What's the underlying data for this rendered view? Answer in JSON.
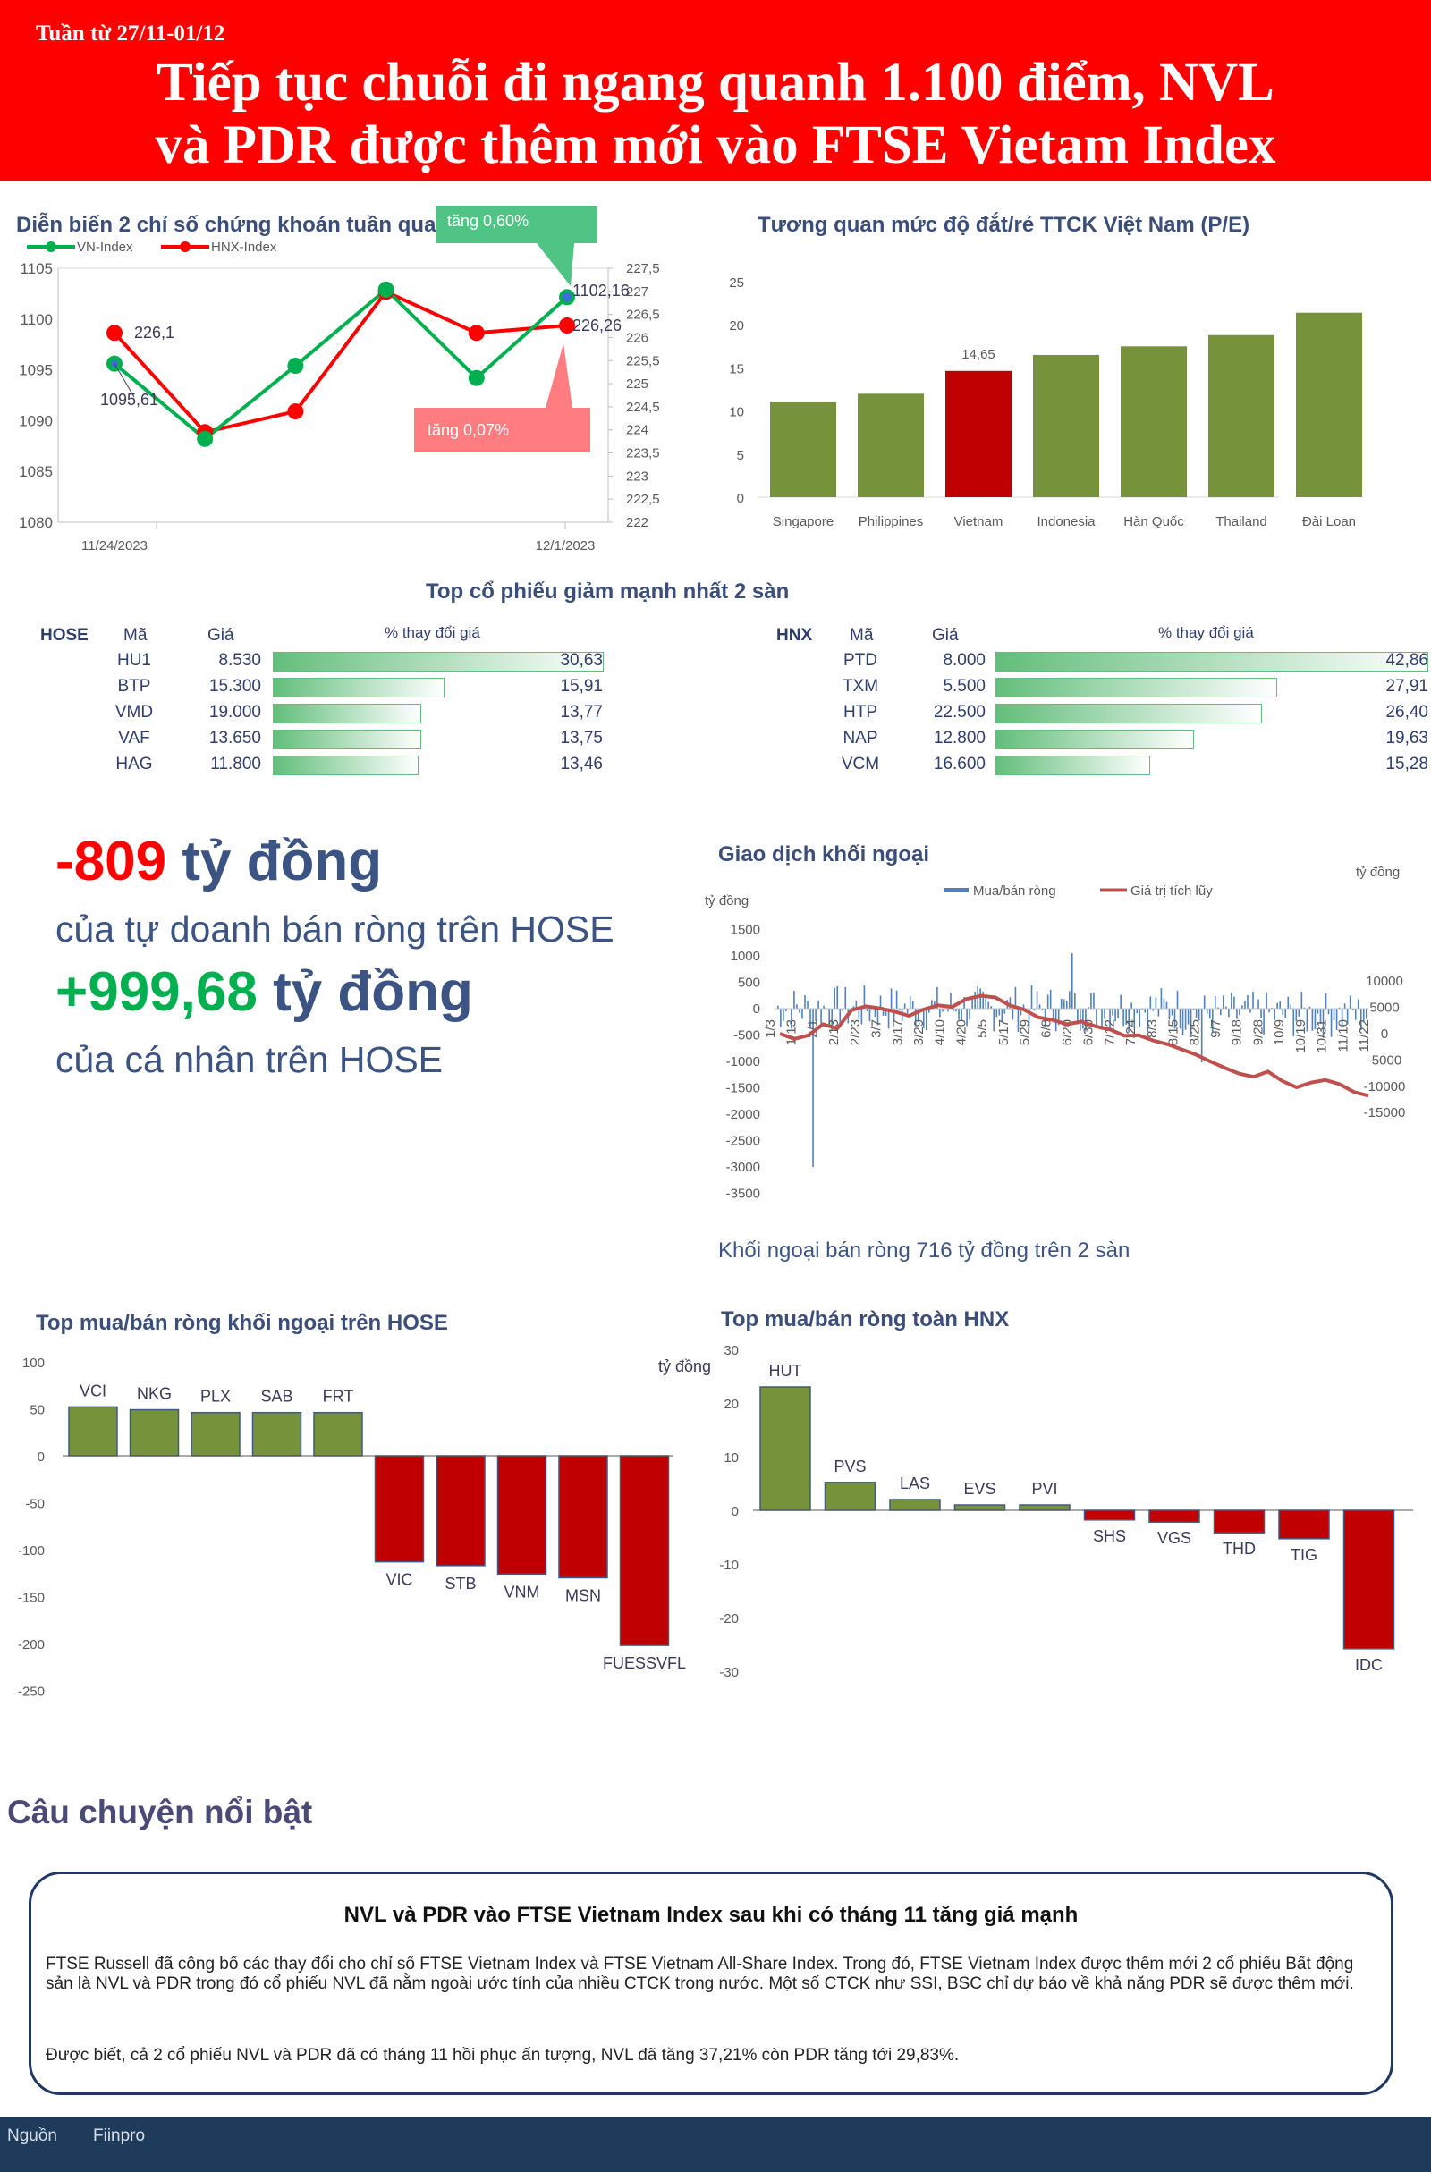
{
  "header": {
    "week": "Tuần từ 27/11-01/12",
    "title_line1": "Tiếp tục chuỗi đi ngang quanh 1.100 điểm, NVL",
    "title_line2": "và PDR được thêm mới vào FTSE Vietam Index"
  },
  "colors": {
    "red": "#ff0000",
    "green": "#00b050",
    "olive": "#76933c",
    "darkred": "#c00000",
    "navy": "#3b4e7a"
  },
  "index_chart": {
    "title": "Diễn biến 2 chỉ số chứng khoán tuần qua",
    "callout_up": "tăng 0,60%",
    "callout_down": "tăng 0,07%",
    "label_vn_first": "1095,61",
    "label_vn_last": "1102,16",
    "label_hnx_first": "226,1",
    "label_hnx_last": "226,26",
    "x_label_left": "11/24/2023",
    "x_label_right": "12/1/2023"
  },
  "pe_chart": {
    "title": "Tương quan mức độ đắt/rẻ TTCK Việt Nam (P/E)",
    "value_label": "14,65"
  },
  "losers": {
    "title": "Top cổ phiếu giảm mạnh nhất 2 sàn",
    "hose": {
      "exchange": "HOSE",
      "col_code": "Mã",
      "col_price": "Giá",
      "col_change": "% thay đổi giá",
      "rows": [
        {
          "code": "HU1",
          "price": "8.530",
          "change": "30,63",
          "value": 30.63
        },
        {
          "code": "BTP",
          "price": "15.300",
          "change": "15,91",
          "value": 15.91
        },
        {
          "code": "VMD",
          "price": "19.000",
          "change": "13,77",
          "value": 13.77
        },
        {
          "code": "VAF",
          "price": "13.650",
          "change": "13,75",
          "value": 13.75
        },
        {
          "code": "HAG",
          "price": "11.800",
          "change": "13,46",
          "value": 13.46
        }
      ]
    },
    "hnx": {
      "exchange": "HNX",
      "col_code": "Mã",
      "col_price": "Giá",
      "col_change": "% thay đổi giá",
      "rows": [
        {
          "code": "PTD",
          "price": "8.000",
          "change": "42,86",
          "value": 42.86
        },
        {
          "code": "TXM",
          "price": "5.500",
          "change": "27,91",
          "value": 27.91
        },
        {
          "code": "HTP",
          "price": "22.500",
          "change": "26,40",
          "value": 26.4
        },
        {
          "code": "NAP",
          "price": "12.800",
          "change": "19,63",
          "value": 19.63
        },
        {
          "code": "VCM",
          "price": "16.600",
          "change": "15,28",
          "value": 15.28
        }
      ]
    }
  },
  "highlights": {
    "prop_value": "-809",
    "prop_unit": "tỷ đồng",
    "prop_desc": "của tự doanh bán ròng trên HOSE",
    "ind_value": "+999,68",
    "ind_unit": "tỷ đồng",
    "ind_desc": "của cá nhân trên HOSE"
  },
  "foreign": {
    "title": "Giao dịch khối ngoại",
    "unit_left": "tỷ đồng",
    "unit_right": "tỷ đồng",
    "legend_bar": "Mua/bán ròng",
    "legend_line": "Giá trị tích lũy",
    "summary": "Khối ngoại bán ròng 716 tỷ đồng trên 2 sàn"
  },
  "hose_net": {
    "title": "Top mua/bán ròng khối ngoại trên HOSE",
    "unit": "tỷ đồng"
  },
  "hnx_net": {
    "title": "Top mua/bán ròng toàn HNX"
  },
  "story": {
    "section_title": "Câu chuyện nổi bật",
    "headline": "NVL và PDR vào FTSE Vietnam Index sau khi có tháng 11 tăng giá mạnh",
    "para1": "FTSE Russell đã công bố các thay đổi cho chỉ số FTSE Vietnam Index và FTSE Vietnam All-Share Index. Trong đó, FTSE Vietnam Index được thêm mới 2 cổ phiếu Bất động sản là NVL và PDR trong đó cổ phiếu NVL đã nằm ngoài ước tính của nhiều CTCK trong nước. Một số CTCK như SSI, BSC chỉ dự báo về khả năng PDR sẽ được thêm mới.",
    "para2": "Được biết, cả 2 cổ phiếu NVL và PDR đã có tháng 11 hồi phục ấn tượng, NVL đã tăng 37,21% còn PDR tăng tới 29,83%."
  },
  "footer": {
    "source_label": "Nguồn",
    "source_value": "Fiinpro"
  },
  "chart_data": [
    {
      "type": "line",
      "title": "Diễn biến 2 chỉ số chứng khoán tuần qua",
      "series": [
        {
          "name": "VN-Index",
          "axis": "left",
          "values": [
            1095.61,
            1088.2,
            1095.4,
            1102.9,
            1094.2,
            1102.16
          ]
        },
        {
          "name": "HNX-Index",
          "axis": "right",
          "values": [
            226.1,
            223.95,
            224.4,
            226.99,
            226.1,
            226.26
          ]
        }
      ],
      "y_left": {
        "ticks": [
          1080,
          1085,
          1090,
          1095,
          1100,
          1105
        ],
        "range": [
          1080,
          1105
        ]
      },
      "y_right": {
        "ticks": [
          222,
          222.5,
          223,
          223.5,
          224,
          224.5,
          225,
          225.5,
          226,
          226.5,
          227,
          227.5
        ],
        "tick_labels": [
          "222",
          "222,5",
          "223",
          "223,5",
          "224",
          "224,5",
          "225",
          "225,5",
          "226",
          "226,5",
          "227",
          "227,5"
        ],
        "range": [
          222,
          227.5
        ]
      },
      "x_labels": [
        "11/24/2023",
        "12/1/2023"
      ],
      "legend": "top-left"
    },
    {
      "type": "bar",
      "title": "Tương quan mức độ đắt/rẻ TTCK Việt Nam (P/E)",
      "categories": [
        "Singapore",
        "Philippines",
        "Vietnam",
        "Indonesia",
        "Hàn Quốc",
        "Thailand",
        "Đài Loan"
      ],
      "values": [
        11.0,
        12.0,
        14.65,
        16.5,
        17.5,
        18.8,
        21.4
      ],
      "ylim": [
        0,
        25
      ],
      "yticks": [
        0,
        5,
        10,
        15,
        20,
        25
      ]
    },
    {
      "type": "bar",
      "title": "Giao dịch khối ngoại",
      "series": [
        {
          "name": "Mua/bán ròng",
          "axis": "left"
        },
        {
          "name": "Giá trị tích lũy",
          "axis": "right"
        }
      ],
      "y_left": {
        "ticks": [
          -3500,
          -3000,
          -2500,
          -2000,
          -1500,
          -1000,
          -500,
          0,
          500,
          1000,
          1500
        ]
      },
      "y_right": {
        "ticks": [
          -15000,
          -10000,
          -5000,
          0,
          5000,
          10000
        ]
      },
      "x_labels": [
        "1/3",
        "1/13",
        "2/1",
        "2/13",
        "2/23",
        "3/7",
        "3/17",
        "3/29",
        "4/10",
        "4/20",
        "5/5",
        "5/17",
        "5/29",
        "6/8",
        "6/20",
        "6/30",
        "7/12",
        "7/24",
        "8/3",
        "8/15",
        "8/25",
        "9/7",
        "9/18",
        "9/28",
        "10/9",
        "10/19",
        "10/31",
        "11/10",
        "11/22"
      ],
      "cumulative": [
        0,
        -1000,
        -300,
        1800,
        1000,
        4500,
        5200,
        4800,
        4200,
        3400,
        4600,
        5400,
        5100,
        6600,
        7200,
        6900,
        5400,
        4600,
        3100,
        2600,
        1800,
        2300,
        1400,
        800,
        -400,
        -300,
        -1300,
        -2000,
        -3000,
        -4000,
        -5300,
        -6500,
        -7600,
        -8200,
        -7200,
        -9000,
        -10200,
        -9300,
        -8800,
        -9600,
        -11100,
        -11800
      ],
      "legend": "top"
    },
    {
      "type": "bar",
      "title": "Top mua/bán ròng khối ngoại trên HOSE",
      "categories": [
        "VCI",
        "NKG",
        "PLX",
        "SAB",
        "FRT",
        "VIC",
        "STB",
        "VNM",
        "MSN",
        "FUESSVFL"
      ],
      "values": [
        52,
        49,
        46,
        46,
        46,
        -113,
        -117,
        -126,
        -130,
        -202
      ],
      "ylim": [
        -250,
        100
      ],
      "yticks": [
        -250,
        -200,
        -150,
        -100,
        -50,
        0,
        50,
        100
      ]
    },
    {
      "type": "bar",
      "title": "Top mua/bán ròng toàn HNX",
      "categories": [
        "HUT",
        "PVS",
        "LAS",
        "EVS",
        "PVI",
        "SHS",
        "VGS",
        "THD",
        "TIG",
        "IDC"
      ],
      "values": [
        23,
        5.2,
        2,
        1,
        1,
        -1.8,
        -2.2,
        -4.2,
        -5.3,
        -25.8
      ],
      "ylim": [
        -30,
        30
      ],
      "yticks": [
        -30,
        -20,
        -10,
        0,
        10,
        20,
        30
      ]
    }
  ]
}
